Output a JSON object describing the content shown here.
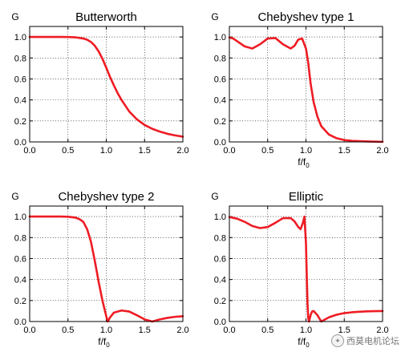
{
  "chart_data": [
    {
      "type": "line",
      "title": "Butterworth",
      "ylabel": "G",
      "xlabel": "",
      "xlim": [
        0,
        2
      ],
      "ylim": [
        0,
        1.1
      ],
      "xticks": [
        "0.0",
        "0.5",
        "1.0",
        "1.5",
        "2.0"
      ],
      "yticks": [
        "0.0",
        "0.2",
        "0.4",
        "0.6",
        "0.8",
        "1.0"
      ],
      "grid": true,
      "series": [
        {
          "color": "#ee1c24",
          "x": [
            0.0,
            0.2,
            0.4,
            0.5,
            0.6,
            0.7,
            0.75,
            0.8,
            0.85,
            0.9,
            0.95,
            1.0,
            1.05,
            1.1,
            1.15,
            1.2,
            1.3,
            1.4,
            1.5,
            1.6,
            1.7,
            1.8,
            1.9,
            2.0
          ],
          "y": [
            1.0,
            1.0,
            1.0,
            0.999,
            0.996,
            0.985,
            0.974,
            0.952,
            0.917,
            0.863,
            0.792,
            0.707,
            0.617,
            0.538,
            0.463,
            0.399,
            0.29,
            0.215,
            0.162,
            0.125,
            0.098,
            0.077,
            0.062,
            0.05
          ]
        }
      ]
    },
    {
      "type": "line",
      "title": "Chebyshev type 1",
      "ylabel": "G",
      "xlabel": "f/f",
      "xlabel_sub": "0",
      "xlim": [
        0,
        2
      ],
      "ylim": [
        0,
        1.1
      ],
      "xticks": [
        "0.0",
        "0.5",
        "1.0",
        "1.5",
        "2.0"
      ],
      "yticks": [
        "0.0",
        "0.2",
        "0.4",
        "0.6",
        "0.8",
        "1.0"
      ],
      "grid": true,
      "series": [
        {
          "color": "#ee1c24",
          "x": [
            0.0,
            0.05,
            0.1,
            0.2,
            0.3,
            0.4,
            0.5,
            0.6,
            0.7,
            0.8,
            0.85,
            0.9,
            0.95,
            1.0,
            1.03,
            1.06,
            1.1,
            1.15,
            1.2,
            1.3,
            1.4,
            1.5,
            1.6,
            1.8,
            2.0
          ],
          "y": [
            0.995,
            0.985,
            0.96,
            0.91,
            0.89,
            0.93,
            0.985,
            0.99,
            0.93,
            0.89,
            0.915,
            0.975,
            0.985,
            0.89,
            0.75,
            0.56,
            0.38,
            0.24,
            0.15,
            0.07,
            0.035,
            0.018,
            0.01,
            0.004,
            0.001
          ]
        }
      ]
    },
    {
      "type": "line",
      "title": "Chebyshev type 2",
      "ylabel": "G",
      "xlabel": "f/f",
      "xlabel_sub": "0",
      "xlim": [
        0,
        2
      ],
      "ylim": [
        0,
        1.1
      ],
      "xticks": [
        "0.0",
        "0.5",
        "1.0",
        "1.5",
        "2.0"
      ],
      "yticks": [
        "0.0",
        "0.2",
        "0.4",
        "0.6",
        "0.8",
        "1.0"
      ],
      "grid": true,
      "series": [
        {
          "color": "#ee1c24",
          "x": [
            0.0,
            0.2,
            0.4,
            0.5,
            0.6,
            0.65,
            0.7,
            0.75,
            0.8,
            0.85,
            0.9,
            0.95,
            1.0,
            1.02,
            1.05,
            1.1,
            1.2,
            1.3,
            1.4,
            1.5,
            1.6,
            1.7,
            1.8,
            1.9,
            2.0
          ],
          "y": [
            1.0,
            1.0,
            1.0,
            0.998,
            0.99,
            0.975,
            0.95,
            0.88,
            0.76,
            0.58,
            0.38,
            0.2,
            0.05,
            0.0,
            0.04,
            0.085,
            0.105,
            0.095,
            0.06,
            0.02,
            0.0,
            0.02,
            0.035,
            0.045,
            0.05
          ]
        }
      ]
    },
    {
      "type": "line",
      "title": "Elliptic",
      "ylabel": "G",
      "xlabel": "f/f",
      "xlabel_sub": "0",
      "xlim": [
        0,
        2
      ],
      "ylim": [
        0,
        1.1
      ],
      "xticks": [
        "0.0",
        "0.5",
        "1.0",
        "1.5",
        "2.0"
      ],
      "yticks": [
        "0.0",
        "0.2",
        "0.4",
        "0.6",
        "0.8",
        "1.0"
      ],
      "grid": true,
      "series": [
        {
          "color": "#ee1c24",
          "x": [
            0.0,
            0.1,
            0.2,
            0.3,
            0.4,
            0.5,
            0.6,
            0.7,
            0.8,
            0.85,
            0.9,
            0.93,
            0.96,
            0.98,
            1.0,
            1.01,
            1.02,
            1.03,
            1.04,
            1.06,
            1.08,
            1.1,
            1.15,
            1.2,
            1.3,
            1.4,
            1.5,
            1.6,
            1.7,
            1.8,
            1.9,
            2.0
          ],
          "y": [
            0.995,
            0.98,
            0.95,
            0.91,
            0.89,
            0.9,
            0.94,
            0.985,
            0.985,
            0.955,
            0.9,
            0.88,
            0.94,
            1.0,
            0.75,
            0.45,
            0.18,
            0.03,
            0.0,
            0.06,
            0.095,
            0.1,
            0.06,
            0.0,
            0.04,
            0.065,
            0.08,
            0.088,
            0.093,
            0.097,
            0.099,
            0.1
          ]
        }
      ]
    }
  ],
  "watermark": {
    "text": "西莫电机论坛",
    "icon": "wechat-icon"
  }
}
